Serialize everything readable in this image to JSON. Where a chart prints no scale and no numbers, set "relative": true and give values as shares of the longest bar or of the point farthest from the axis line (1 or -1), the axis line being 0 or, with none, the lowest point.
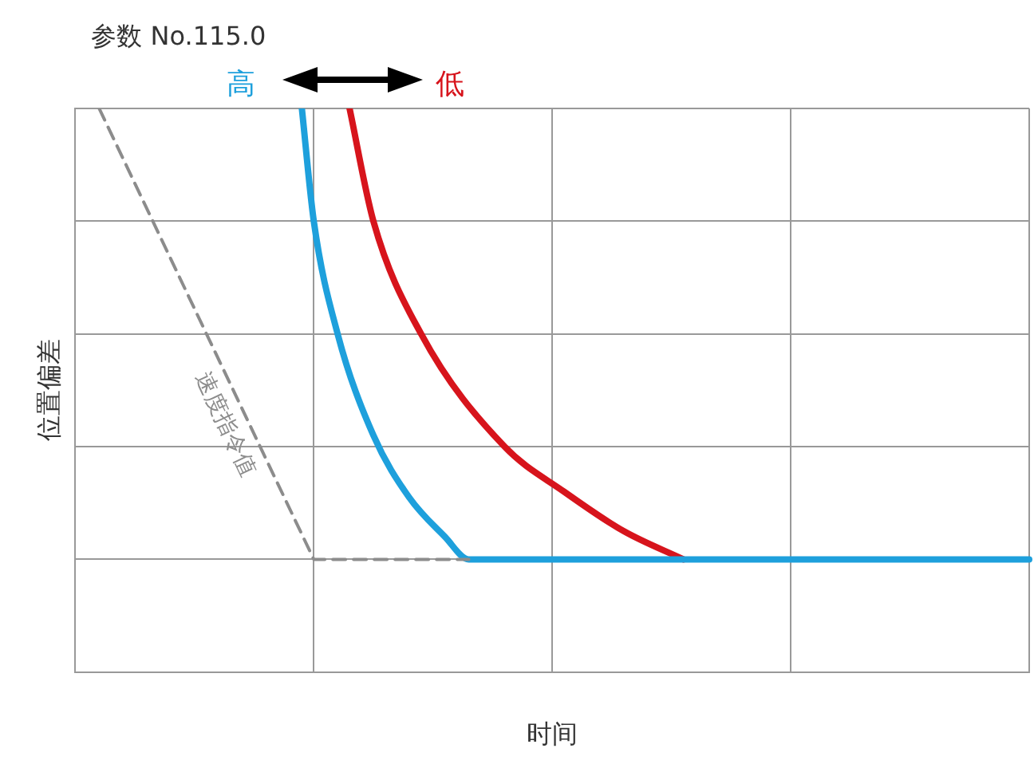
{
  "chart_data": {
    "type": "line",
    "relative": true,
    "title": "参数 No.115.0",
    "xlabel": "时间",
    "ylabel": "位置偏差",
    "grid": true,
    "legend": false,
    "marker": "none",
    "categories": [
      null,
      null,
      null,
      null,
      null,
      null,
      null,
      null,
      null,
      null,
      null,
      null,
      null,
      null,
      null,
      null,
      null,
      null,
      null,
      null,
      null,
      null,
      null,
      null,
      null,
      null,
      null,
      null,
      null,
      null,
      null,
      null,
      null,
      null,
      null,
      null,
      null,
      null,
      null,
      null,
      null,
      null,
      null,
      null,
      null,
      null,
      null,
      null,
      null,
      null,
      null,
      null,
      null,
      null,
      null,
      null,
      null,
      null,
      null,
      null,
      null,
      null,
      null,
      null,
      null,
      null,
      null,
      null,
      null,
      null,
      null,
      null,
      null,
      null,
      null,
      null,
      null,
      null,
      null,
      null,
      null
    ],
    "series": [
      {
        "name": "速度指令值",
        "color": "#8c8c8c",
        "line_style": "dashed",
        "values": [
          null,
          null,
          1,
          null,
          null,
          null,
          null,
          null,
          null,
          null,
          null,
          null,
          null,
          null,
          null,
          null,
          null,
          null,
          null,
          null,
          0.2,
          null,
          null,
          null,
          null,
          null,
          null,
          null,
          null,
          null,
          null,
          null,
          null,
          0.2,
          null,
          null,
          null,
          null,
          null,
          null,
          null,
          null,
          null,
          null,
          null,
          null,
          null,
          null,
          null,
          null,
          null,
          null,
          null,
          null,
          null,
          null,
          null,
          null,
          null,
          null,
          null,
          null,
          null,
          null,
          null,
          null,
          null,
          null,
          null,
          null,
          null,
          null,
          null,
          null,
          null,
          null,
          null,
          null,
          null,
          null,
          null
        ]
      },
      {
        "name": "高",
        "color": "#1ea0dc",
        "values": [
          null,
          null,
          null,
          null,
          null,
          null,
          null,
          null,
          null,
          null,
          null,
          null,
          null,
          null,
          null,
          null,
          null,
          null,
          null,
          1,
          0.8,
          null,
          0.6,
          null,
          null,
          0.42,
          null,
          null,
          0.31,
          null,
          null,
          0.24,
          null,
          0.2,
          null,
          null,
          null,
          null,
          null,
          null,
          null,
          null,
          null,
          null,
          null,
          null,
          null,
          null,
          null,
          null,
          null,
          null,
          null,
          null,
          null,
          null,
          null,
          null,
          null,
          null,
          null,
          null,
          null,
          null,
          null,
          null,
          null,
          null,
          null,
          null,
          null,
          null,
          null,
          null,
          null,
          null,
          null,
          null,
          null,
          null,
          0.2
        ]
      },
      {
        "name": "低",
        "color": "#d7141c",
        "values": [
          null,
          null,
          null,
          null,
          null,
          null,
          null,
          null,
          null,
          null,
          null,
          null,
          null,
          null,
          null,
          null,
          null,
          null,
          null,
          null,
          null,
          null,
          null,
          1,
          null,
          0.8,
          null,
          null,
          null,
          0.6,
          null,
          null,
          null,
          null,
          null,
          null,
          0.4,
          null,
          null,
          null,
          null,
          0.32,
          null,
          null,
          null,
          null,
          0.25,
          null,
          null,
          null,
          null,
          0.2,
          null,
          null,
          null,
          null,
          null,
          null,
          null,
          null,
          null,
          null,
          null,
          null,
          null,
          null,
          null,
          null,
          null,
          null,
          null,
          null,
          null,
          null,
          null,
          null,
          null,
          null,
          null,
          null,
          null
        ]
      }
    ]
  }
}
